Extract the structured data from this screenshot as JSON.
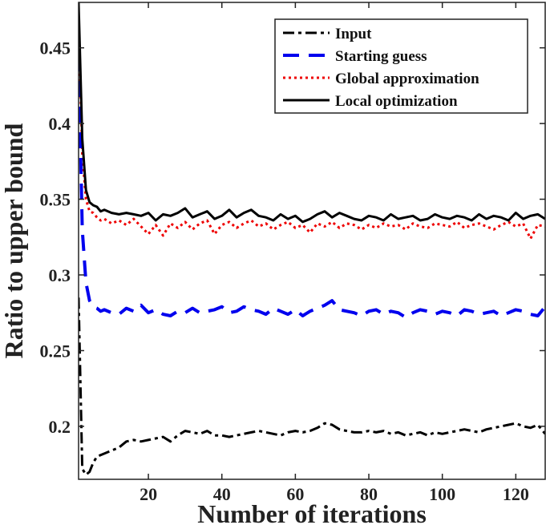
{
  "chart_data": {
    "type": "line",
    "title": "",
    "xlabel": "Number of iterations",
    "ylabel": "Ratio to upper bound",
    "xlim": [
      1,
      128
    ],
    "ylim": [
      0.165,
      0.48
    ],
    "xticks": [
      20,
      40,
      60,
      80,
      100,
      120
    ],
    "yticks": [
      0.2,
      0.25,
      0.3,
      0.35,
      0.4,
      0.45
    ],
    "xtick_labels": [
      "20",
      "40",
      "60",
      "80",
      "100",
      "120"
    ],
    "ytick_labels": [
      "0.2",
      "0.25",
      "0.3",
      "0.35",
      "0.4",
      "0.45"
    ],
    "grid": false,
    "legend_position": "top-right",
    "series": [
      {
        "name": "Input",
        "color": "#000000",
        "style": "dashdot",
        "x": [
          1,
          2,
          3,
          4,
          5,
          6,
          7,
          8,
          10,
          12,
          14,
          16,
          18,
          20,
          22,
          24,
          26,
          28,
          30,
          32,
          34,
          36,
          38,
          40,
          42,
          44,
          46,
          48,
          50,
          52,
          54,
          56,
          58,
          60,
          62,
          64,
          66,
          68,
          70,
          72,
          74,
          76,
          78,
          80,
          82,
          84,
          86,
          88,
          90,
          92,
          94,
          96,
          98,
          100,
          102,
          104,
          106,
          108,
          110,
          112,
          114,
          116,
          118,
          120,
          122,
          124,
          126,
          128
        ],
        "values": [
          0.285,
          0.172,
          0.168,
          0.17,
          0.176,
          0.18,
          0.181,
          0.182,
          0.184,
          0.186,
          0.19,
          0.191,
          0.19,
          0.191,
          0.192,
          0.193,
          0.19,
          0.194,
          0.197,
          0.196,
          0.195,
          0.197,
          0.194,
          0.194,
          0.193,
          0.194,
          0.195,
          0.196,
          0.197,
          0.196,
          0.195,
          0.194,
          0.196,
          0.197,
          0.196,
          0.197,
          0.199,
          0.202,
          0.201,
          0.198,
          0.197,
          0.196,
          0.196,
          0.197,
          0.196,
          0.197,
          0.195,
          0.196,
          0.194,
          0.195,
          0.196,
          0.194,
          0.196,
          0.195,
          0.196,
          0.197,
          0.198,
          0.197,
          0.196,
          0.198,
          0.199,
          0.2,
          0.201,
          0.202,
          0.2,
          0.199,
          0.201,
          0.195
        ]
      },
      {
        "name": "Starting guess",
        "color": "#0000ee",
        "style": "dashed",
        "x": [
          1,
          2,
          3,
          4,
          5,
          6,
          7,
          8,
          10,
          12,
          14,
          16,
          18,
          20,
          22,
          24,
          26,
          28,
          30,
          32,
          34,
          36,
          38,
          40,
          42,
          44,
          46,
          48,
          50,
          52,
          54,
          56,
          58,
          60,
          62,
          64,
          66,
          68,
          70,
          72,
          74,
          76,
          78,
          80,
          82,
          84,
          86,
          88,
          90,
          92,
          94,
          96,
          98,
          100,
          102,
          104,
          106,
          108,
          110,
          112,
          114,
          116,
          118,
          120,
          122,
          124,
          126,
          128
        ],
        "values": [
          0.445,
          0.33,
          0.295,
          0.283,
          0.279,
          0.278,
          0.276,
          0.277,
          0.275,
          0.274,
          0.278,
          0.276,
          0.28,
          0.275,
          0.277,
          0.274,
          0.273,
          0.276,
          0.275,
          0.278,
          0.275,
          0.276,
          0.277,
          0.279,
          0.275,
          0.276,
          0.279,
          0.277,
          0.276,
          0.274,
          0.278,
          0.276,
          0.274,
          0.277,
          0.273,
          0.276,
          0.278,
          0.28,
          0.283,
          0.277,
          0.276,
          0.275,
          0.273,
          0.276,
          0.277,
          0.274,
          0.276,
          0.275,
          0.272,
          0.275,
          0.277,
          0.276,
          0.274,
          0.276,
          0.275,
          0.273,
          0.277,
          0.276,
          0.274,
          0.275,
          0.276,
          0.273,
          0.275,
          0.277,
          0.276,
          0.274,
          0.273,
          0.279
        ]
      },
      {
        "name": "Global approximation",
        "color": "#ee0000",
        "style": "dotted",
        "x": [
          1,
          2,
          3,
          4,
          5,
          6,
          7,
          8,
          10,
          12,
          14,
          16,
          18,
          20,
          22,
          24,
          26,
          28,
          30,
          32,
          34,
          36,
          38,
          40,
          42,
          44,
          46,
          48,
          50,
          52,
          54,
          56,
          58,
          60,
          62,
          64,
          66,
          68,
          70,
          72,
          74,
          76,
          78,
          80,
          82,
          84,
          86,
          88,
          90,
          92,
          94,
          96,
          98,
          100,
          102,
          104,
          106,
          108,
          110,
          112,
          114,
          116,
          118,
          120,
          122,
          124,
          126,
          128
        ],
        "values": [
          0.47,
          0.38,
          0.35,
          0.342,
          0.341,
          0.338,
          0.336,
          0.337,
          0.334,
          0.336,
          0.333,
          0.337,
          0.332,
          0.327,
          0.333,
          0.326,
          0.334,
          0.331,
          0.335,
          0.33,
          0.334,
          0.336,
          0.327,
          0.333,
          0.335,
          0.331,
          0.334,
          0.336,
          0.332,
          0.334,
          0.33,
          0.333,
          0.335,
          0.331,
          0.333,
          0.328,
          0.334,
          0.332,
          0.335,
          0.331,
          0.334,
          0.333,
          0.33,
          0.333,
          0.331,
          0.334,
          0.332,
          0.333,
          0.33,
          0.334,
          0.332,
          0.331,
          0.334,
          0.333,
          0.332,
          0.335,
          0.331,
          0.333,
          0.334,
          0.332,
          0.33,
          0.333,
          0.335,
          0.332,
          0.334,
          0.324,
          0.333,
          0.332
        ]
      },
      {
        "name": "Local optimization",
        "color": "#000000",
        "style": "solid",
        "x": [
          1,
          2,
          3,
          4,
          5,
          6,
          7,
          8,
          10,
          12,
          14,
          16,
          18,
          20,
          22,
          24,
          26,
          28,
          30,
          32,
          34,
          36,
          38,
          40,
          42,
          44,
          46,
          48,
          50,
          52,
          54,
          56,
          58,
          60,
          62,
          64,
          66,
          68,
          70,
          72,
          74,
          76,
          78,
          80,
          82,
          84,
          86,
          88,
          90,
          92,
          94,
          96,
          98,
          100,
          102,
          104,
          106,
          108,
          110,
          112,
          114,
          116,
          118,
          120,
          122,
          124,
          126,
          128
        ],
        "values": [
          0.48,
          0.39,
          0.356,
          0.348,
          0.346,
          0.345,
          0.342,
          0.343,
          0.341,
          0.34,
          0.341,
          0.34,
          0.339,
          0.341,
          0.336,
          0.34,
          0.339,
          0.341,
          0.344,
          0.338,
          0.34,
          0.342,
          0.337,
          0.339,
          0.343,
          0.338,
          0.341,
          0.343,
          0.339,
          0.338,
          0.336,
          0.34,
          0.337,
          0.339,
          0.335,
          0.337,
          0.34,
          0.342,
          0.338,
          0.341,
          0.339,
          0.337,
          0.336,
          0.339,
          0.338,
          0.336,
          0.34,
          0.337,
          0.338,
          0.339,
          0.336,
          0.337,
          0.34,
          0.338,
          0.337,
          0.339,
          0.338,
          0.336,
          0.34,
          0.337,
          0.339,
          0.338,
          0.336,
          0.341,
          0.337,
          0.339,
          0.34,
          0.337
        ]
      }
    ]
  }
}
